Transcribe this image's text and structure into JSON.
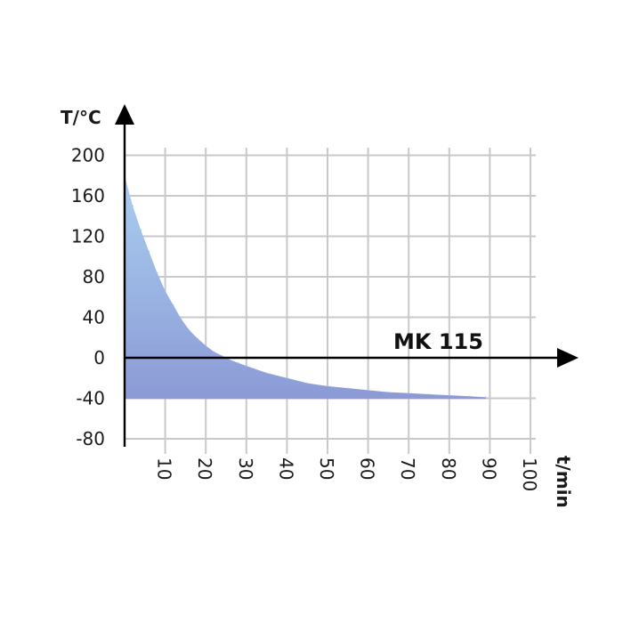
{
  "chart_data": {
    "type": "area",
    "title": "",
    "xlabel": "t/min",
    "ylabel": "T/°C",
    "xlim": [
      0,
      100
    ],
    "ylim": [
      -80,
      200
    ],
    "x_ticks": [
      10,
      20,
      30,
      40,
      50,
      60,
      70,
      80,
      90,
      100
    ],
    "y_ticks": [
      200,
      160,
      120,
      80,
      40,
      0,
      -40,
      -80
    ],
    "grid": true,
    "annotation": "MK 115",
    "baseline": -40,
    "series": [
      {
        "x": [
          0,
          2,
          4,
          6,
          8,
          10,
          12,
          14,
          16,
          18,
          20,
          22,
          24,
          26,
          28,
          30,
          35,
          40,
          45,
          50,
          55,
          60,
          65,
          70,
          75,
          80,
          85,
          89
        ],
        "y": [
          180,
          150,
          126,
          105,
          84,
          66,
          52,
          38,
          27,
          19,
          12,
          6,
          2,
          -2,
          -5,
          -8,
          -15,
          -20,
          -25,
          -28,
          -30,
          -32,
          -34,
          -35,
          -36,
          -37,
          -38,
          -39
        ]
      }
    ],
    "colors": {
      "fill_top": "#a9cff0",
      "fill_bottom": "#8c9ad6",
      "grid": "#c9c9c9",
      "axis": "#000000"
    }
  }
}
